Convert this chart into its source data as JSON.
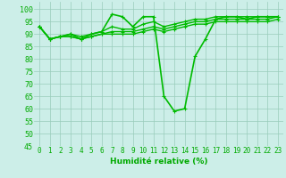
{
  "series": [
    {
      "x": [
        0,
        1,
        2,
        3,
        4,
        5,
        6,
        7,
        8,
        9,
        10,
        11,
        12,
        13,
        14,
        15,
        16,
        17,
        18,
        19,
        20,
        21,
        22,
        23
      ],
      "y": [
        93,
        88,
        89,
        90,
        88,
        90,
        91,
        98,
        97,
        93,
        97,
        97,
        65,
        59,
        60,
        81,
        88,
        96,
        97,
        97,
        96,
        97,
        97,
        97
      ],
      "color": "#00bb00",
      "lw": 1.2,
      "marker": "+"
    },
    {
      "x": [
        0,
        1,
        2,
        3,
        4,
        5,
        6,
        7,
        8,
        9,
        10,
        11,
        12,
        13,
        14,
        15,
        16,
        17,
        18,
        19,
        20,
        21,
        22,
        23
      ],
      "y": [
        93,
        88,
        89,
        90,
        89,
        90,
        91,
        93,
        92,
        92,
        94,
        95,
        93,
        94,
        95,
        96,
        96,
        97,
        97,
        97,
        97,
        97,
        97,
        97
      ],
      "color": "#00bb00",
      "lw": 1.0,
      "marker": "+"
    },
    {
      "x": [
        0,
        1,
        2,
        3,
        4,
        5,
        6,
        7,
        8,
        9,
        10,
        11,
        12,
        13,
        14,
        15,
        16,
        17,
        18,
        19,
        20,
        21,
        22,
        23
      ],
      "y": [
        93,
        88,
        89,
        89,
        88,
        89,
        90,
        91,
        91,
        91,
        92,
        93,
        92,
        93,
        94,
        95,
        95,
        96,
        96,
        96,
        96,
        96,
        96,
        97
      ],
      "color": "#00bb00",
      "lw": 1.0,
      "marker": "+"
    },
    {
      "x": [
        0,
        1,
        2,
        3,
        4,
        5,
        6,
        7,
        8,
        9,
        10,
        11,
        12,
        13,
        14,
        15,
        16,
        17,
        18,
        19,
        20,
        21,
        22,
        23
      ],
      "y": [
        93,
        88,
        89,
        89,
        88,
        89,
        90,
        90,
        90,
        90,
        91,
        92,
        91,
        92,
        93,
        94,
        94,
        95,
        95,
        95,
        95,
        95,
        95,
        96
      ],
      "color": "#00bb00",
      "lw": 1.0,
      "marker": "+"
    }
  ],
  "xlabel": "Humidité relative (%)",
  "xlim": [
    -0.5,
    23.5
  ],
  "ylim": [
    45,
    103
  ],
  "yticks": [
    45,
    50,
    55,
    60,
    65,
    70,
    75,
    80,
    85,
    90,
    95,
    100
  ],
  "xticks": [
    0,
    1,
    2,
    3,
    4,
    5,
    6,
    7,
    8,
    9,
    10,
    11,
    12,
    13,
    14,
    15,
    16,
    17,
    18,
    19,
    20,
    21,
    22,
    23
  ],
  "bg_color": "#cceee8",
  "grid_color": "#99ccbb",
  "tick_label_color": "#00aa00",
  "xlabel_color": "#00aa00"
}
